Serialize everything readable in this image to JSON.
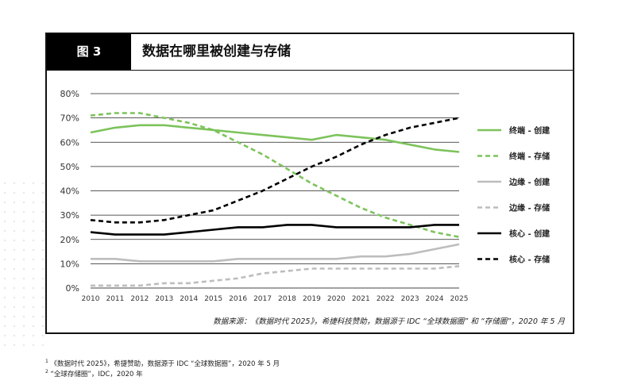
{
  "figure": {
    "label": "图 3",
    "title": "数据在哪里被创建与存储"
  },
  "source": "数据来源：《数据时代 2025》，希捷科技赞助，数据源于 IDC “全球数据圈” 和 “存储圈”，2020 年 5 月",
  "footnotes": [
    {
      "mark": "1",
      "text": "《数据时代 2025》，希捷赞助，数据源于 IDC “全球数据圈”，2020 年 5 月"
    },
    {
      "mark": "2",
      "text": "“全球存储圈”，IDC，2020 年"
    }
  ],
  "chart_data": {
    "type": "line",
    "x": [
      2010,
      2011,
      2012,
      2013,
      2014,
      2015,
      2016,
      2017,
      2018,
      2019,
      2020,
      2021,
      2022,
      2023,
      2024,
      2025
    ],
    "ylim": [
      0,
      80
    ],
    "yticks": [
      "0%",
      "10%",
      "20%",
      "30%",
      "40%",
      "50%",
      "60%",
      "70%",
      "80%"
    ],
    "grid": "horizontal",
    "legend_position": "right",
    "series": [
      {
        "name": "终端 - 创建",
        "color": "#7dc35b",
        "dash": false,
        "values": [
          64,
          66,
          67,
          67,
          66,
          65,
          64,
          63,
          62,
          61,
          63,
          62,
          61,
          59,
          57,
          56
        ]
      },
      {
        "name": "终端 - 存储",
        "color": "#7dc35b",
        "dash": true,
        "values": [
          71,
          72,
          72,
          70,
          68,
          65,
          60,
          55,
          49,
          43,
          38,
          33,
          29,
          26,
          23,
          21
        ]
      },
      {
        "name": "边缘 - 创建",
        "color": "#bdbdbd",
        "dash": false,
        "values": [
          12,
          12,
          11,
          11,
          11,
          11,
          12,
          12,
          12,
          12,
          12,
          13,
          13,
          14,
          16,
          18
        ]
      },
      {
        "name": "边缘 - 存储",
        "color": "#bdbdbd",
        "dash": true,
        "values": [
          1,
          1,
          1,
          2,
          2,
          3,
          4,
          6,
          7,
          8,
          8,
          8,
          8,
          8,
          8,
          9
        ]
      },
      {
        "name": "核心 - 创建",
        "color": "#000000",
        "dash": false,
        "values": [
          23,
          22,
          22,
          22,
          23,
          24,
          25,
          25,
          26,
          26,
          25,
          25,
          25,
          25,
          26,
          26
        ]
      },
      {
        "name": "核心 - 存储",
        "color": "#000000",
        "dash": true,
        "values": [
          28,
          27,
          27,
          28,
          30,
          32,
          36,
          40,
          45,
          50,
          54,
          59,
          63,
          66,
          68,
          70
        ]
      }
    ]
  }
}
